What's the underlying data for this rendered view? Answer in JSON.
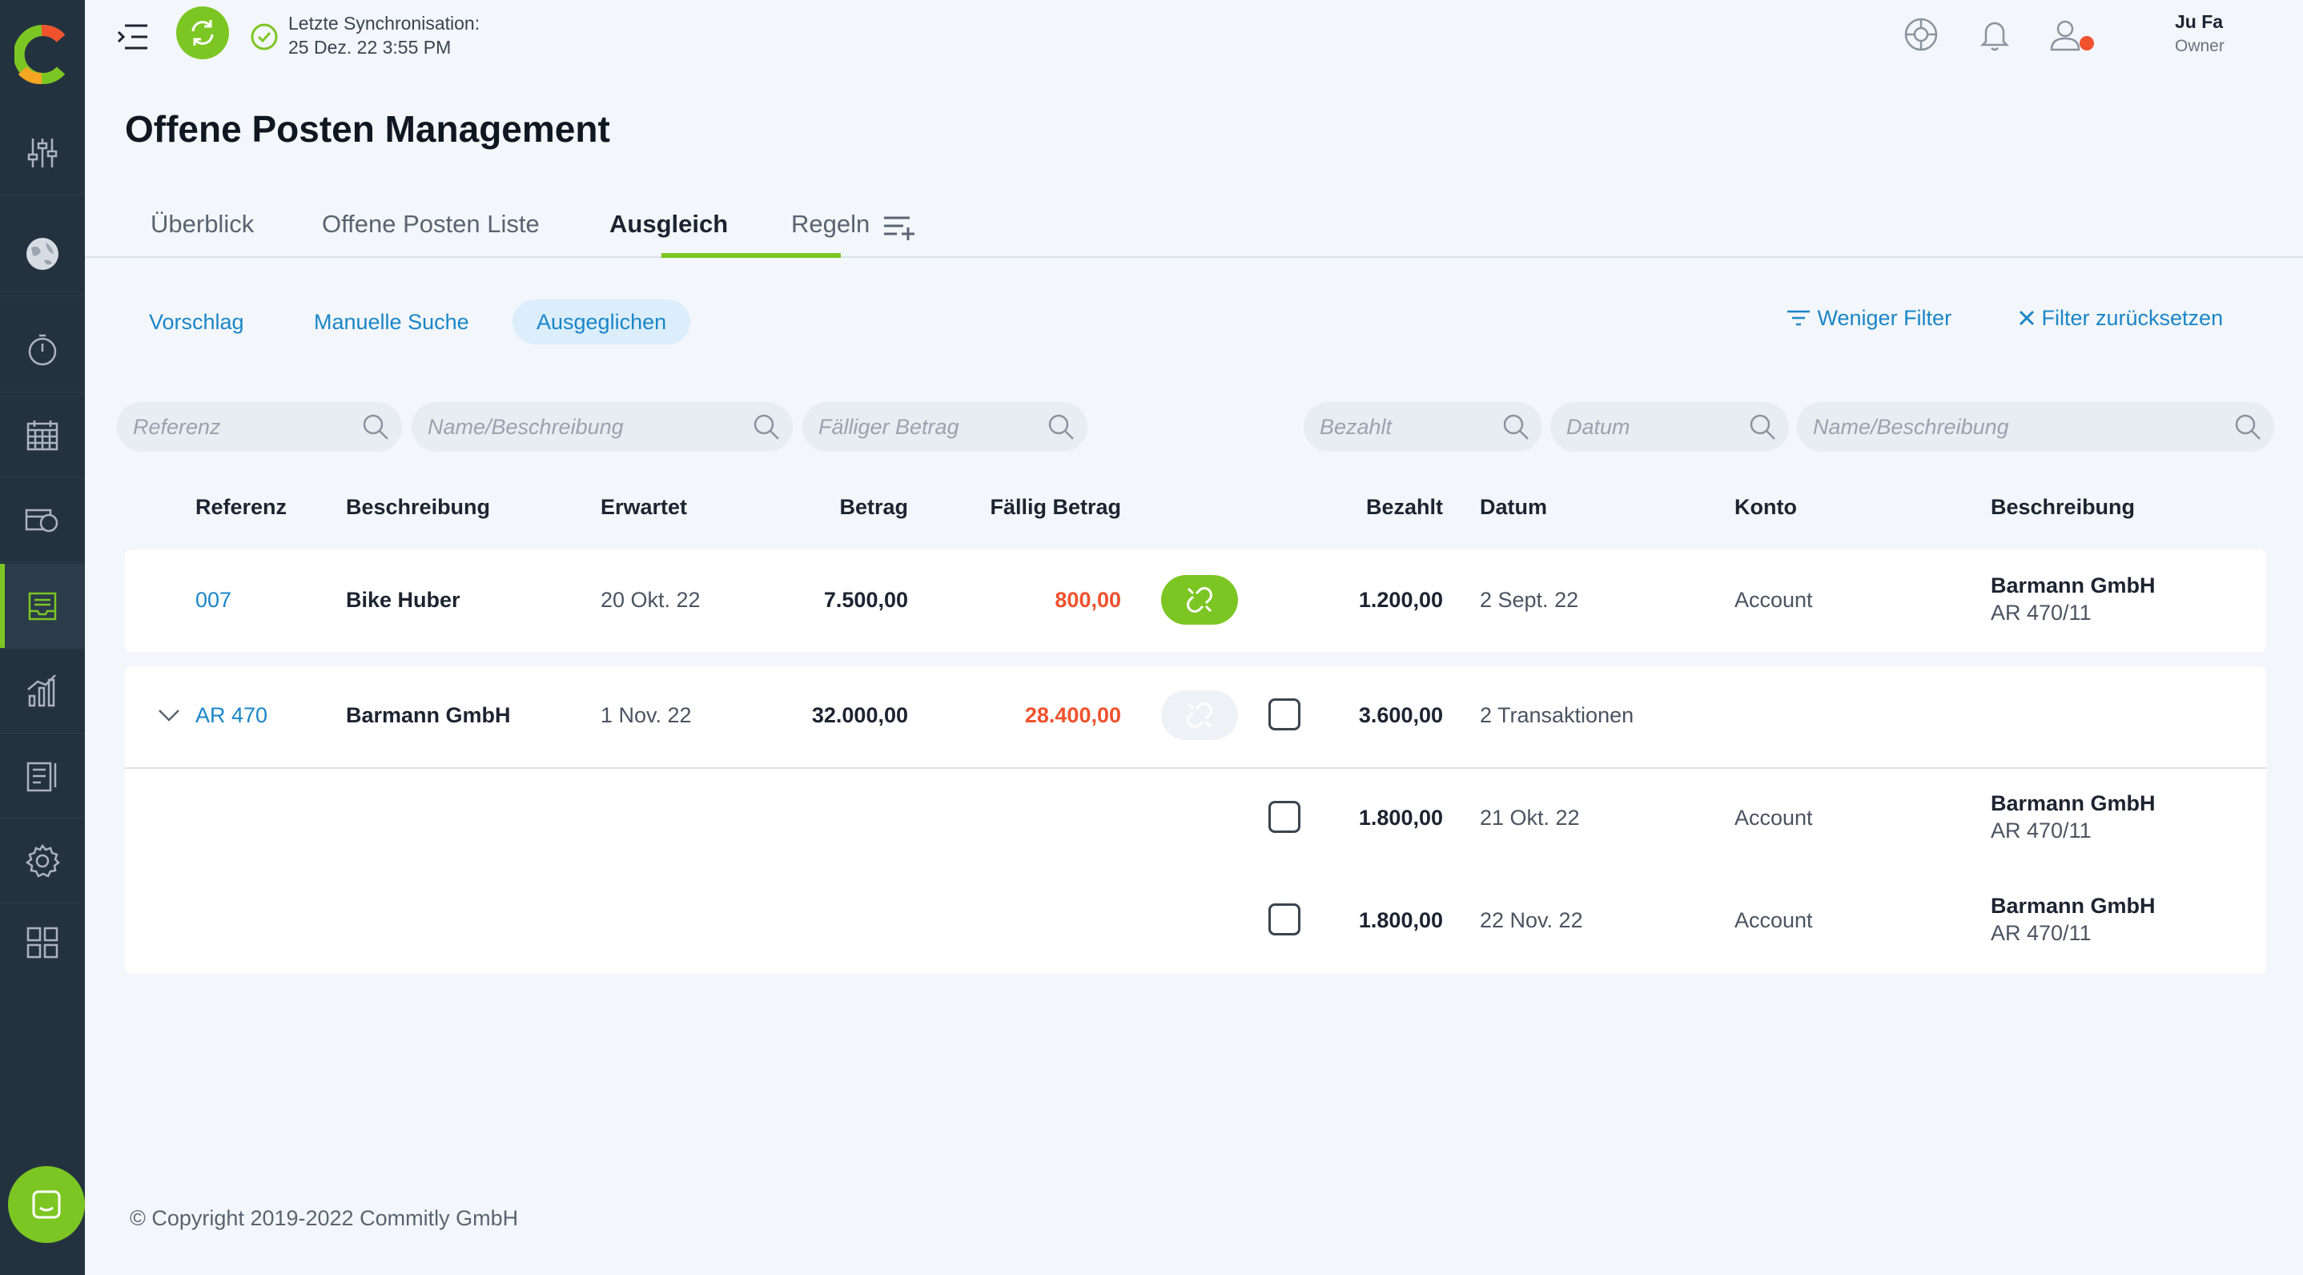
{
  "app": {
    "sync_label": "Letzte Synchronisation:",
    "sync_time": "25 Dez. 22 3:55 PM",
    "user_name": "Ju Fa",
    "user_role": "Owner",
    "accent": "#7cc623",
    "link_color": "#1a86c7",
    "alert_color": "#f0522e"
  },
  "sidebar": {
    "items": [
      {
        "icon": "sliders-icon"
      },
      {
        "icon": "globe-icon"
      },
      {
        "icon": "stopwatch-icon"
      },
      {
        "icon": "calendar-icon"
      },
      {
        "icon": "cash-icon"
      },
      {
        "icon": "inbox-tray-icon",
        "active": true
      },
      {
        "icon": "bar-chart-icon"
      },
      {
        "icon": "report-icon"
      },
      {
        "icon": "gear-icon"
      },
      {
        "icon": "grid-icon"
      }
    ]
  },
  "page": {
    "title": "Offene Posten Management"
  },
  "tabs": [
    "Überblick",
    "Offene Posten Liste",
    "Ausgleich",
    "Regeln"
  ],
  "subnav": {
    "items": [
      "Vorschlag",
      "Manuelle Suche",
      "Ausgeglichen"
    ],
    "active": "Ausgeglichen",
    "less_filter": "Weniger Filter",
    "reset_filter": "Filter zurücksetzen"
  },
  "search": {
    "referenz": "Referenz",
    "name_desc_left": "Name/Beschreibung",
    "faelliger_betrag": "Fälliger Betrag",
    "bezahlt": "Bezahlt",
    "datum": "Datum",
    "name_desc_right": "Name/Beschreibung"
  },
  "columns": {
    "referenz": "Referenz",
    "beschreibung": "Beschreibung",
    "erwartet": "Erwartet",
    "betrag": "Betrag",
    "faellig_betrag": "Fällig Betrag",
    "bezahlt": "Bezahlt",
    "datum": "Datum",
    "konto": "Konto",
    "beschreibung_right": "Beschreibung"
  },
  "rows": [
    {
      "ref": "007",
      "desc": "Bike Huber",
      "expected": "20 Okt. 22",
      "amount": "7.500,00",
      "due": "800,00",
      "paid": "1.200,00",
      "date": "2 Sept. 22",
      "account": "Account",
      "payee": "Barmann GmbH",
      "payee_ref": "AR 470/11"
    },
    {
      "ref": "AR 470",
      "desc": "Barmann GmbH",
      "expected": "1 Nov. 22",
      "amount": "32.000,00",
      "due": "28.400,00",
      "paid": "3.600,00",
      "date": "2 Transaktionen",
      "transactions": [
        {
          "paid": "1.800,00",
          "date": "21 Okt. 22",
          "account": "Account",
          "payee": "Barmann GmbH",
          "payee_ref": "AR 470/11"
        },
        {
          "paid": "1.800,00",
          "date": "22 Nov. 22",
          "account": "Account",
          "payee": "Barmann GmbH",
          "payee_ref": "AR 470/11"
        }
      ]
    }
  ],
  "footer": "© Copyright 2019-2022  Commitly GmbH"
}
